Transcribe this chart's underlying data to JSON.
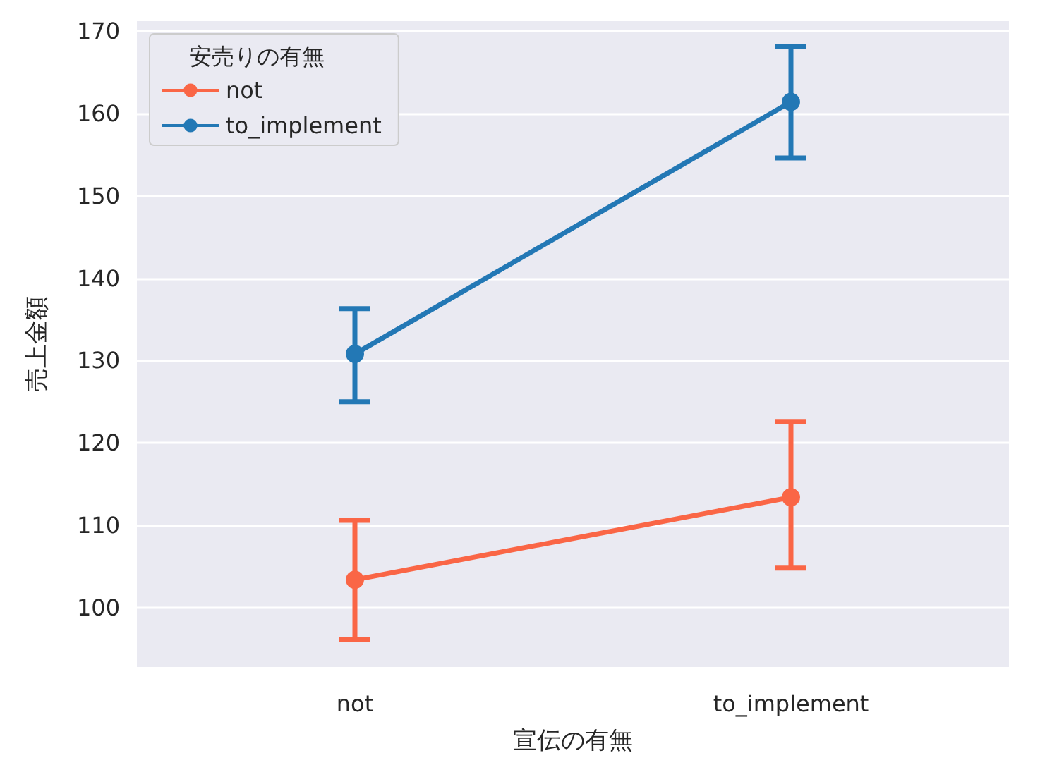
{
  "chart_data": {
    "type": "line",
    "xlabel": "宣伝の有無",
    "ylabel": "売上金額",
    "legend_title": "安売りの有無",
    "categories": [
      "not",
      "to_implement"
    ],
    "series": [
      {
        "name": "not",
        "color": "#fa6646",
        "values": [
          103.4,
          113.4
        ],
        "errors": [
          [
            96.1,
            110.6
          ],
          [
            104.8,
            122.6
          ]
        ]
      },
      {
        "name": "to_implement",
        "color": "#2378b5",
        "values": [
          130.8,
          161.4
        ],
        "errors": [
          [
            125.0,
            136.3
          ],
          [
            154.6,
            168.1
          ]
        ]
      }
    ],
    "ylim": [
      92.8,
      171.2
    ],
    "yticks": [
      100,
      110,
      120,
      130,
      140,
      150,
      160,
      170
    ],
    "grid": "y",
    "legend": "top left",
    "marker": "circle",
    "line_style": "solid"
  }
}
